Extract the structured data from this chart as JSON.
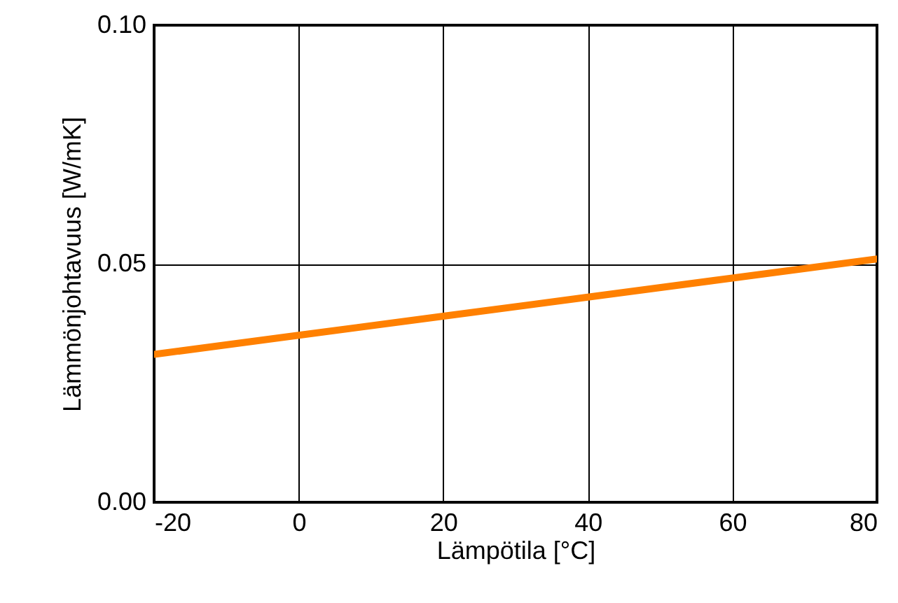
{
  "chart_data": {
    "type": "line",
    "xlabel": "Lämpötila [°C]",
    "ylabel": "Lämmönjohtavuus [W/mK]",
    "x": [
      -20,
      0,
      20,
      40,
      60,
      80
    ],
    "series": [
      {
        "color": "#ff8000",
        "values": [
          0.031,
          0.035,
          0.039,
          0.043,
          0.047,
          0.051
        ]
      }
    ],
    "xlim": [
      -20,
      80
    ],
    "xticks": [
      -20,
      0,
      20,
      40,
      60,
      80
    ],
    "ylim": [
      0,
      0.1
    ],
    "yticks": [
      {
        "value": 0,
        "label": "0.00"
      },
      {
        "value": 0.05,
        "label": "0.05"
      },
      {
        "value": 0.1,
        "label": "0.10"
      }
    ],
    "grid": true
  }
}
